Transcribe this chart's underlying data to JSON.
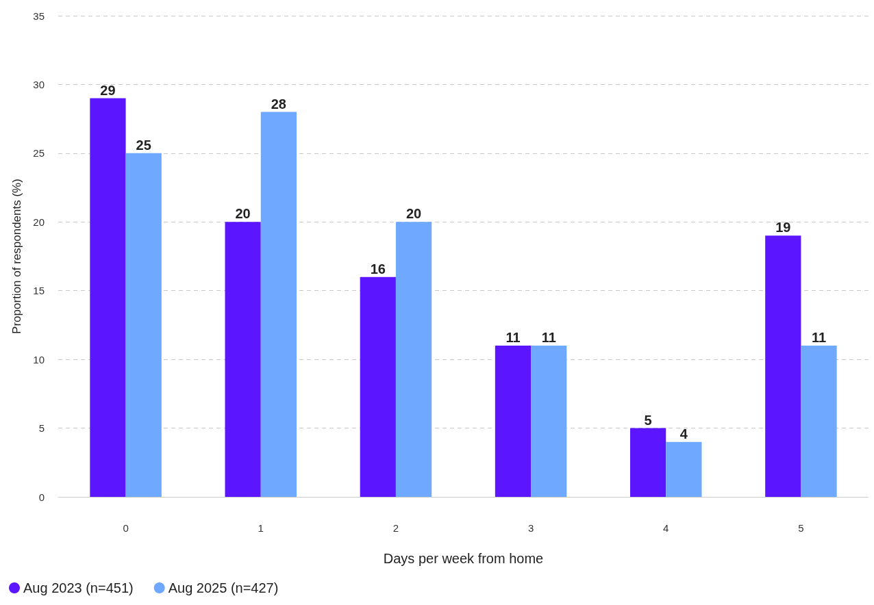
{
  "chart_data": {
    "type": "bar",
    "xlabel": "Days per week from home",
    "ylabel": "Proportion of respondents (%)",
    "categories": [
      "0",
      "1",
      "2",
      "3",
      "4",
      "5"
    ],
    "series": [
      {
        "name": "Aug 2023 (n=451)",
        "color": "#5c16ff",
        "values": [
          29,
          20,
          16,
          11,
          5,
          19
        ]
      },
      {
        "name": "Aug 2025 (n=427)",
        "color": "#6ea8ff",
        "values": [
          25,
          28,
          20,
          11,
          4,
          11
        ]
      }
    ],
    "ylim": [
      0,
      35
    ],
    "yticks": [
      0,
      5,
      10,
      15,
      20,
      25,
      30,
      35
    ],
    "grid": "y",
    "legend": "bottom left",
    "data_labels": true
  }
}
